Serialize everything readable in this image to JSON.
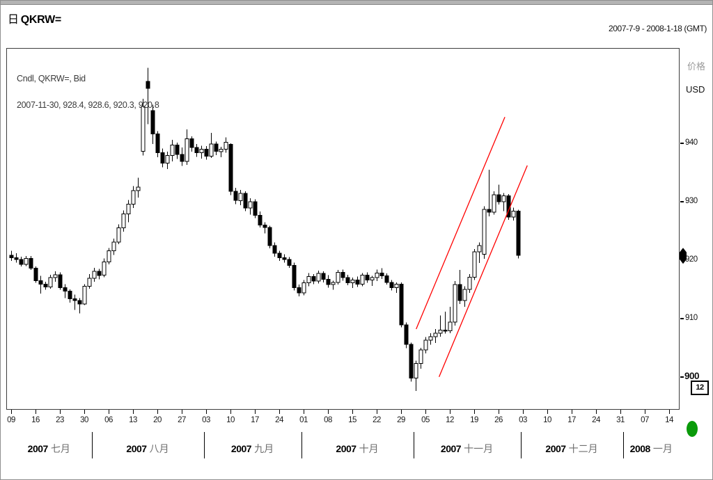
{
  "header": {
    "period_badge": "日",
    "symbol": "QKRW=",
    "date_range": "2007-7-9 - 2008-1-18 (GMT)"
  },
  "legend": {
    "line1": "Cndl, QKRW=, Bid",
    "line2": "2007-11-30, 928.4, 928.6, 920.3, 920.8"
  },
  "y_axis": {
    "title": "价格",
    "unit": "USD",
    "ticks": [
      {
        "label": "940",
        "price": 940
      },
      {
        "label": "930",
        "price": 930
      },
      {
        "label": "920",
        "price": 920,
        "marker": true
      },
      {
        "label": "910",
        "price": 910
      },
      {
        "label": "900",
        "price": 900,
        "bold": true
      }
    ],
    "scale_box_label": "12",
    "last_price": 920.8,
    "last_price_label": "920"
  },
  "x_axis": {
    "weeks": [
      {
        "slot": 0,
        "label": "09"
      },
      {
        "slot": 5,
        "label": "16"
      },
      {
        "slot": 10,
        "label": "23"
      },
      {
        "slot": 15,
        "label": "30"
      },
      {
        "slot": 20,
        "label": "06"
      },
      {
        "slot": 25,
        "label": "13"
      },
      {
        "slot": 30,
        "label": "20"
      },
      {
        "slot": 35,
        "label": "27"
      },
      {
        "slot": 40,
        "label": "03"
      },
      {
        "slot": 45,
        "label": "10"
      },
      {
        "slot": 50,
        "label": "17"
      },
      {
        "slot": 55,
        "label": "24"
      },
      {
        "slot": 60,
        "label": "01"
      },
      {
        "slot": 65,
        "label": "08"
      },
      {
        "slot": 70,
        "label": "15"
      },
      {
        "slot": 75,
        "label": "22"
      },
      {
        "slot": 80,
        "label": "29"
      },
      {
        "slot": 85,
        "label": "05"
      },
      {
        "slot": 90,
        "label": "12"
      },
      {
        "slot": 95,
        "label": "19"
      },
      {
        "slot": 100,
        "label": "26"
      },
      {
        "slot": 105,
        "label": "03"
      },
      {
        "slot": 110,
        "label": "10"
      },
      {
        "slot": 115,
        "label": "17"
      },
      {
        "slot": 120,
        "label": "24"
      },
      {
        "slot": 125,
        "label": "31"
      },
      {
        "slot": 130,
        "label": "07"
      },
      {
        "slot": 135,
        "label": "14"
      }
    ],
    "months": [
      {
        "year": "2007",
        "label": "七月",
        "start_slot": 0
      },
      {
        "year": "2007",
        "label": "八月",
        "start_slot": 17
      },
      {
        "year": "2007",
        "label": "九月",
        "start_slot": 40
      },
      {
        "year": "2007",
        "label": "十月",
        "start_slot": 60
      },
      {
        "year": "2007",
        "label": "十一月",
        "start_slot": 83
      },
      {
        "year": "2007",
        "label": "十二月",
        "start_slot": 105
      },
      {
        "year": "2008",
        "label": "一月",
        "start_slot": 126
      }
    ],
    "total_slots": 139
  },
  "chart_data": {
    "type": "candlestick",
    "instrument": "QKRW=",
    "field": "Bid",
    "interval": "daily",
    "title": "日 QKRW=",
    "ylabel": "价格 USD",
    "ylim": [
      894.5,
      956.2
    ],
    "grid": false,
    "up_color": "#ffffff",
    "down_color": "#000000",
    "outline_color": "#000000",
    "candles": [
      [
        "2007-07-09",
        920.8,
        921.6,
        919.9,
        920.4
      ],
      [
        "2007-07-10",
        920.4,
        921.2,
        919.6,
        920.1
      ],
      [
        "2007-07-11",
        920.1,
        920.6,
        918.9,
        919.3
      ],
      [
        "2007-07-12",
        919.3,
        920.7,
        919.0,
        920.3
      ],
      [
        "2007-07-13",
        920.3,
        920.7,
        918.3,
        918.6
      ],
      [
        "2007-07-16",
        918.6,
        918.9,
        916.1,
        916.5
      ],
      [
        "2007-07-17",
        916.5,
        917.3,
        914.3,
        915.9
      ],
      [
        "2007-07-18",
        915.9,
        916.3,
        914.9,
        915.4
      ],
      [
        "2007-07-19",
        915.4,
        917.5,
        915.1,
        917.0
      ],
      [
        "2007-07-20",
        917.0,
        918.1,
        916.3,
        917.5
      ],
      [
        "2007-07-23",
        917.5,
        917.9,
        914.9,
        915.3
      ],
      [
        "2007-07-24",
        915.3,
        915.9,
        913.5,
        914.7
      ],
      [
        "2007-07-25",
        914.7,
        915.0,
        912.7,
        913.4
      ],
      [
        "2007-07-26",
        913.4,
        914.1,
        911.5,
        913.1
      ],
      [
        "2007-07-27",
        913.1,
        913.5,
        910.9,
        912.5
      ],
      [
        "2007-07-30",
        912.5,
        915.9,
        912.3,
        915.5
      ],
      [
        "2007-07-31",
        915.5,
        917.6,
        915.1,
        916.9
      ],
      [
        "2007-08-01",
        916.9,
        918.7,
        916.3,
        918.1
      ],
      [
        "2007-08-02",
        918.1,
        918.5,
        916.7,
        917.4
      ],
      [
        "2007-08-03",
        917.4,
        920.3,
        917.1,
        919.7
      ],
      [
        "2007-08-06",
        919.7,
        922.1,
        919.3,
        921.6
      ],
      [
        "2007-08-07",
        921.6,
        923.7,
        920.9,
        923.1
      ],
      [
        "2007-08-08",
        923.1,
        926.1,
        922.7,
        925.5
      ],
      [
        "2007-08-09",
        925.5,
        928.5,
        924.9,
        927.9
      ],
      [
        "2007-08-10",
        927.9,
        930.3,
        926.5,
        929.6
      ],
      [
        "2007-08-13",
        929.6,
        932.7,
        928.9,
        931.9
      ],
      [
        "2007-08-14",
        931.9,
        934.1,
        930.7,
        932.5
      ],
      [
        "2007-08-15",
        938.6,
        947.6,
        937.9,
        946.3
      ],
      [
        "2007-08-16",
        950.6,
        952.9,
        943.3,
        949.4
      ],
      [
        "2007-08-17",
        945.6,
        946.6,
        939.9,
        941.6
      ],
      [
        "2007-08-20",
        941.6,
        942.1,
        937.6,
        938.4
      ],
      [
        "2007-08-21",
        938.4,
        939.1,
        935.9,
        936.6
      ],
      [
        "2007-08-22",
        936.6,
        938.6,
        935.6,
        937.9
      ],
      [
        "2007-08-23",
        937.9,
        940.6,
        936.9,
        939.7
      ],
      [
        "2007-08-24",
        939.7,
        940.1,
        937.3,
        938.1
      ],
      [
        "2007-08-27",
        938.1,
        939.3,
        936.1,
        936.9
      ],
      [
        "2007-08-28",
        936.9,
        942.4,
        936.3,
        940.8
      ],
      [
        "2007-08-29",
        940.8,
        941.2,
        938.6,
        939.3
      ],
      [
        "2007-08-30",
        939.3,
        939.9,
        937.7,
        938.4
      ],
      [
        "2007-08-31",
        938.4,
        939.6,
        937.4,
        939.0
      ],
      [
        "2007-09-03",
        939.0,
        939.5,
        937.2,
        937.8
      ],
      [
        "2007-09-04",
        937.8,
        941.8,
        937.5,
        939.9
      ],
      [
        "2007-09-05",
        939.9,
        940.3,
        938.0,
        938.6
      ],
      [
        "2007-09-06",
        938.6,
        939.4,
        937.6,
        939.0
      ],
      [
        "2007-09-07",
        939.0,
        941.0,
        938.4,
        940.2
      ],
      [
        "2007-09-10",
        939.8,
        940.0,
        931.1,
        931.8
      ],
      [
        "2007-09-11",
        931.8,
        932.4,
        929.6,
        930.2
      ],
      [
        "2007-09-12",
        930.2,
        932.0,
        929.4,
        931.4
      ],
      [
        "2007-09-13",
        931.4,
        931.8,
        928.4,
        928.9
      ],
      [
        "2007-09-14",
        928.9,
        930.6,
        927.8,
        930.0
      ],
      [
        "2007-09-17",
        930.0,
        930.4,
        927.2,
        927.7
      ],
      [
        "2007-09-18",
        927.7,
        928.3,
        925.6,
        926.0
      ],
      [
        "2007-09-19",
        926.0,
        926.5,
        924.6,
        925.6
      ],
      [
        "2007-09-20",
        925.6,
        925.9,
        922.0,
        922.5
      ],
      [
        "2007-09-21",
        922.5,
        923.0,
        920.6,
        921.2
      ],
      [
        "2007-09-24",
        921.2,
        921.6,
        919.9,
        920.4
      ],
      [
        "2007-09-25",
        920.4,
        921.0,
        919.6,
        920.1
      ],
      [
        "2007-09-26",
        920.1,
        920.5,
        918.7,
        919.1
      ],
      [
        "2007-09-27",
        919.1,
        919.6,
        914.8,
        915.3
      ],
      [
        "2007-09-28",
        915.3,
        915.8,
        913.8,
        914.4
      ],
      [
        "2007-10-01",
        914.4,
        916.6,
        914.0,
        916.1
      ],
      [
        "2007-10-02",
        916.1,
        917.8,
        915.5,
        917.2
      ],
      [
        "2007-10-03",
        917.2,
        917.6,
        915.9,
        916.4
      ],
      [
        "2007-10-04",
        916.4,
        918.2,
        916.0,
        917.7
      ],
      [
        "2007-10-05",
        917.7,
        918.1,
        916.2,
        916.7
      ],
      [
        "2007-10-08",
        916.7,
        917.4,
        915.3,
        915.8
      ],
      [
        "2007-10-09",
        915.8,
        916.5,
        914.9,
        916.2
      ],
      [
        "2007-10-10",
        916.2,
        918.3,
        915.8,
        917.9
      ],
      [
        "2007-10-11",
        917.9,
        918.4,
        916.5,
        917.0
      ],
      [
        "2007-10-12",
        917.0,
        917.5,
        915.7,
        916.1
      ],
      [
        "2007-10-15",
        916.1,
        917.0,
        915.2,
        916.6
      ],
      [
        "2007-10-16",
        916.6,
        917.2,
        915.4,
        915.9
      ],
      [
        "2007-10-17",
        915.9,
        917.8,
        915.5,
        917.4
      ],
      [
        "2007-10-18",
        917.4,
        917.9,
        916.1,
        916.6
      ],
      [
        "2007-10-19",
        916.6,
        917.3,
        915.6,
        917.0
      ],
      [
        "2007-10-22",
        917.0,
        918.4,
        916.4,
        917.8
      ],
      [
        "2007-10-23",
        917.8,
        918.6,
        916.8,
        917.3
      ],
      [
        "2007-10-24",
        917.3,
        917.7,
        915.8,
        916.2
      ],
      [
        "2007-10-25",
        916.2,
        916.6,
        914.8,
        915.3
      ],
      [
        "2007-10-26",
        915.3,
        916.2,
        914.4,
        915.9
      ],
      [
        "2007-10-29",
        915.9,
        916.2,
        908.5,
        908.9
      ],
      [
        "2007-10-30",
        908.9,
        909.3,
        904.9,
        905.6
      ],
      [
        "2007-10-31",
        905.6,
        905.9,
        899.2,
        899.8
      ],
      [
        "2007-11-01",
        899.8,
        902.8,
        897.6,
        902.3
      ],
      [
        "2007-11-02",
        902.3,
        905.0,
        901.4,
        904.6
      ],
      [
        "2007-11-05",
        904.6,
        906.8,
        904.0,
        906.3
      ],
      [
        "2007-11-06",
        906.3,
        907.5,
        905.5,
        906.9
      ],
      [
        "2007-11-07",
        906.9,
        908.2,
        905.8,
        907.5
      ],
      [
        "2007-11-08",
        907.5,
        910.5,
        906.9,
        908.0
      ],
      [
        "2007-11-09",
        908.0,
        911.2,
        907.4,
        907.9
      ],
      [
        "2007-11-12",
        907.9,
        912.0,
        907.5,
        909.4
      ],
      [
        "2007-11-13",
        909.4,
        916.4,
        908.8,
        915.8
      ],
      [
        "2007-11-14",
        915.8,
        918.3,
        912.5,
        913.1
      ],
      [
        "2007-11-15",
        913.1,
        915.5,
        912.0,
        915.0
      ],
      [
        "2007-11-16",
        915.0,
        917.6,
        914.4,
        917.1
      ],
      [
        "2007-11-19",
        917.1,
        921.9,
        916.6,
        921.4
      ],
      [
        "2007-11-20",
        921.4,
        923.0,
        919.5,
        922.5
      ],
      [
        "2007-11-21",
        921.0,
        929.2,
        920.2,
        928.7
      ],
      [
        "2007-11-22",
        928.7,
        935.5,
        927.5,
        928.2
      ],
      [
        "2007-11-23",
        928.2,
        931.8,
        927.8,
        931.2
      ],
      [
        "2007-11-26",
        931.2,
        932.9,
        929.5,
        930.0
      ],
      [
        "2007-11-27",
        930.0,
        931.5,
        928.4,
        931.0
      ],
      [
        "2007-11-28",
        931.0,
        931.3,
        926.9,
        927.4
      ],
      [
        "2007-11-29",
        927.4,
        929.0,
        926.8,
        928.4
      ],
      [
        "2007-11-30",
        928.4,
        928.6,
        920.3,
        920.8
      ]
    ],
    "trendlines": [
      {
        "name": "channel-upper",
        "color": "#ff0000",
        "from": [
          83.1,
          908.2
        ],
        "to": [
          101.3,
          944.5
        ]
      },
      {
        "name": "channel-lower",
        "color": "#ff0000",
        "from": [
          87.8,
          900.0
        ],
        "to": [
          105.9,
          936.2
        ]
      }
    ]
  },
  "indicator": {
    "color": "#0a9a0a"
  }
}
